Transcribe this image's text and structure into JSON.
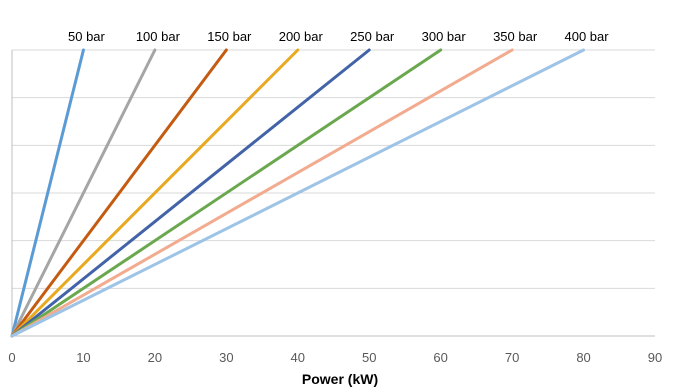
{
  "chart_data": {
    "type": "line",
    "title": "",
    "xlabel": "Power (kW)",
    "ylabel": "",
    "xlim": [
      0,
      90
    ],
    "ylim": [
      0,
      6
    ],
    "x_ticks": [
      0,
      10,
      20,
      30,
      40,
      50,
      60,
      70,
      80,
      90
    ],
    "y_ticks_labeled": false,
    "grid": "horizontal",
    "legend": "none (series labeled at line ends)",
    "series": [
      {
        "name": "50 bar",
        "color": "#5b9bd5",
        "x": [
          0,
          10
        ],
        "y": [
          0,
          6
        ]
      },
      {
        "name": "100 bar",
        "color": "#a5a5a5",
        "x": [
          0,
          20
        ],
        "y": [
          0,
          6
        ]
      },
      {
        "name": "150 bar",
        "color": "#c55a11",
        "x": [
          0,
          30
        ],
        "y": [
          0,
          6
        ]
      },
      {
        "name": "200 bar",
        "color": "#e8a91f",
        "x": [
          0,
          40
        ],
        "y": [
          0,
          6
        ]
      },
      {
        "name": "250 bar",
        "color": "#4263a8",
        "x": [
          0,
          50
        ],
        "y": [
          0,
          6
        ]
      },
      {
        "name": "300 bar",
        "color": "#6aa84f",
        "x": [
          0,
          60
        ],
        "y": [
          0,
          6
        ]
      },
      {
        "name": "350 bar",
        "color": "#f2ab8f",
        "x": [
          0,
          70
        ],
        "y": [
          0,
          6
        ]
      },
      {
        "name": "400 bar",
        "color": "#9dc3e6",
        "x": [
          0,
          80
        ],
        "y": [
          0,
          6
        ]
      }
    ]
  }
}
